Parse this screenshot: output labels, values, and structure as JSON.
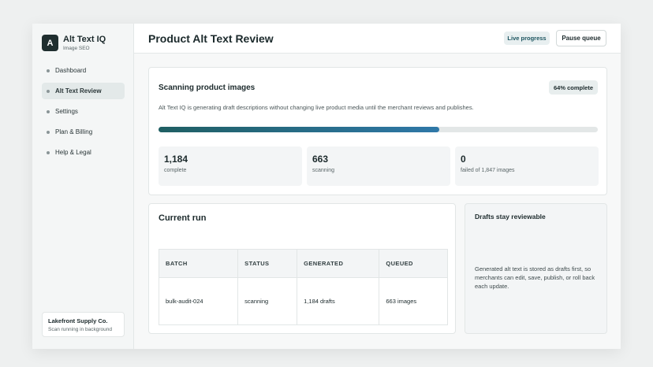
{
  "sidebar": {
    "logo": "A",
    "brand": "Alt Text IQ",
    "tagline": "Image SEO",
    "nav": [
      "Dashboard",
      "Alt Text Review",
      "Settings",
      "Plan & Billing",
      "Help & Legal"
    ],
    "store": {
      "name": "Lakefront Supply Co.",
      "status": "Scan running in background"
    }
  },
  "header": {
    "title": "Product Alt Text Review",
    "badge": "Live progress",
    "button": "Pause queue"
  },
  "scan": {
    "title": "Scanning product images",
    "progress": {
      "value": 64,
      "label": "64% complete"
    },
    "description": "Alt Text IQ is generating draft descriptions without changing live product media until the merchant reviews and publishes.",
    "stats": [
      {
        "value": "1,184",
        "label": "complete"
      },
      {
        "value": "663",
        "label": "scanning"
      },
      {
        "value": "0",
        "label": "failed of 1,847 images"
      }
    ]
  },
  "run": {
    "title": "Current run",
    "table": {
      "headers": [
        "BATCH",
        "STATUS",
        "GENERATED",
        "QUEUED"
      ],
      "rows": [
        [
          "bulk-audit-024",
          "scanning",
          "1,184 drafts",
          "663 images"
        ]
      ]
    }
  },
  "note": {
    "title": "Drafts stay reviewable",
    "text": "Generated alt text is stored as drafts first, so merchants can edit, save, publish, or roll back each update."
  }
}
